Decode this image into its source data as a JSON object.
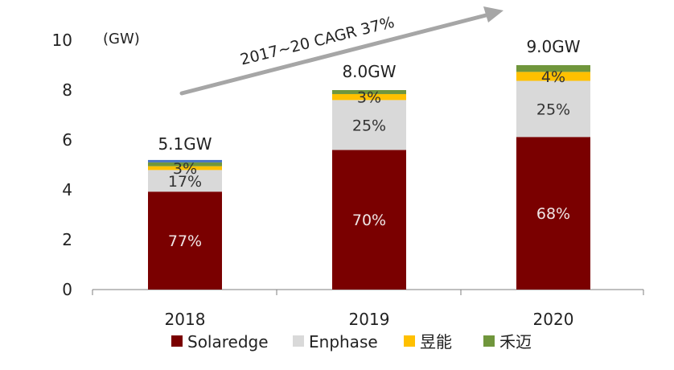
{
  "chart_data": {
    "type": "bar",
    "stacked": true,
    "categories": [
      "2018",
      "2019",
      "2020"
    ],
    "totals": [
      5.1,
      8.0,
      9.0
    ],
    "total_labels": [
      "5.1GW",
      "8.0GW",
      "9.0GW"
    ],
    "unit_label": "(GW)",
    "ylim": [
      0,
      10
    ],
    "yticks": [
      0,
      2,
      4,
      6,
      8,
      10
    ],
    "grid": false,
    "legend_position": "bottom",
    "series": [
      {
        "name": "Solaredge",
        "color": "#7a0000",
        "shares": [
          0.77,
          0.7,
          0.68
        ],
        "labels": [
          "77%",
          "70%",
          "68%"
        ],
        "label_style": "light"
      },
      {
        "name": "Enphase",
        "color": "#d9d9d9",
        "shares": [
          0.17,
          0.25,
          0.25
        ],
        "labels": [
          "17%",
          "25%",
          "25%"
        ],
        "label_style": "dark"
      },
      {
        "name": "昱能",
        "color": "#ffc000",
        "shares": [
          0.03,
          0.03,
          0.04
        ],
        "labels": [
          "3%",
          "3%",
          "4%"
        ],
        "label_style": "dark"
      },
      {
        "name": "禾迈",
        "color": "#70963c",
        "shares": [
          0.03,
          0.02,
          0.03
        ],
        "labels": [
          "",
          "",
          ""
        ],
        "label_style": "dark"
      }
    ],
    "extra_top_color_2018": "#4472c4",
    "annotation": {
      "text": "2017~20 CAGR 37%",
      "arrow_color": "#a6a6a6"
    }
  }
}
